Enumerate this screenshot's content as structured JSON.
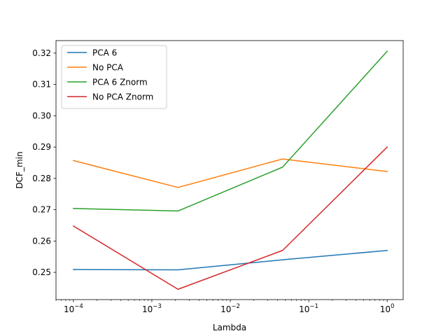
{
  "chart_data": {
    "type": "line",
    "xlabel": "Lambda",
    "ylabel": "DCF_min",
    "xscale": "log",
    "xlim": [
      6e-05,
      1.6
    ],
    "ylim": [
      0.2413,
      0.324
    ],
    "x": [
      0.0001,
      0.0021544,
      0.0464159,
      1.0
    ],
    "x_ticks": [
      {
        "value": 0.0001,
        "base": "10",
        "exp": "−4"
      },
      {
        "value": 0.001,
        "base": "10",
        "exp": "−3"
      },
      {
        "value": 0.01,
        "base": "10",
        "exp": "−2"
      },
      {
        "value": 0.1,
        "base": "10",
        "exp": "−1"
      },
      {
        "value": 1,
        "base": "10",
        "exp": "0"
      }
    ],
    "y_ticks": [
      {
        "value": 0.25,
        "label": "0.25"
      },
      {
        "value": 0.26,
        "label": "0.26"
      },
      {
        "value": 0.27,
        "label": "0.27"
      },
      {
        "value": 0.28,
        "label": "0.28"
      },
      {
        "value": 0.29,
        "label": "0.29"
      },
      {
        "value": 0.3,
        "label": "0.30"
      },
      {
        "value": 0.31,
        "label": "0.31"
      },
      {
        "value": 0.32,
        "label": "0.32"
      }
    ],
    "series": [
      {
        "name": "PCA 6",
        "color": "#1f77b4",
        "values": [
          0.2509,
          0.2508,
          0.254,
          0.257
        ]
      },
      {
        "name": "No PCA",
        "color": "#ff7f0e",
        "values": [
          0.2857,
          0.2771,
          0.2862,
          0.2822
        ]
      },
      {
        "name": "PCA 6 Znorm",
        "color": "#2ca02c",
        "values": [
          0.2704,
          0.2696,
          0.2836,
          0.3206
        ]
      },
      {
        "name": "No PCA Znorm",
        "color": "#d62728",
        "values": [
          0.2648,
          0.2446,
          0.257,
          0.29
        ]
      }
    ],
    "legend": "top-left",
    "grid": false
  }
}
